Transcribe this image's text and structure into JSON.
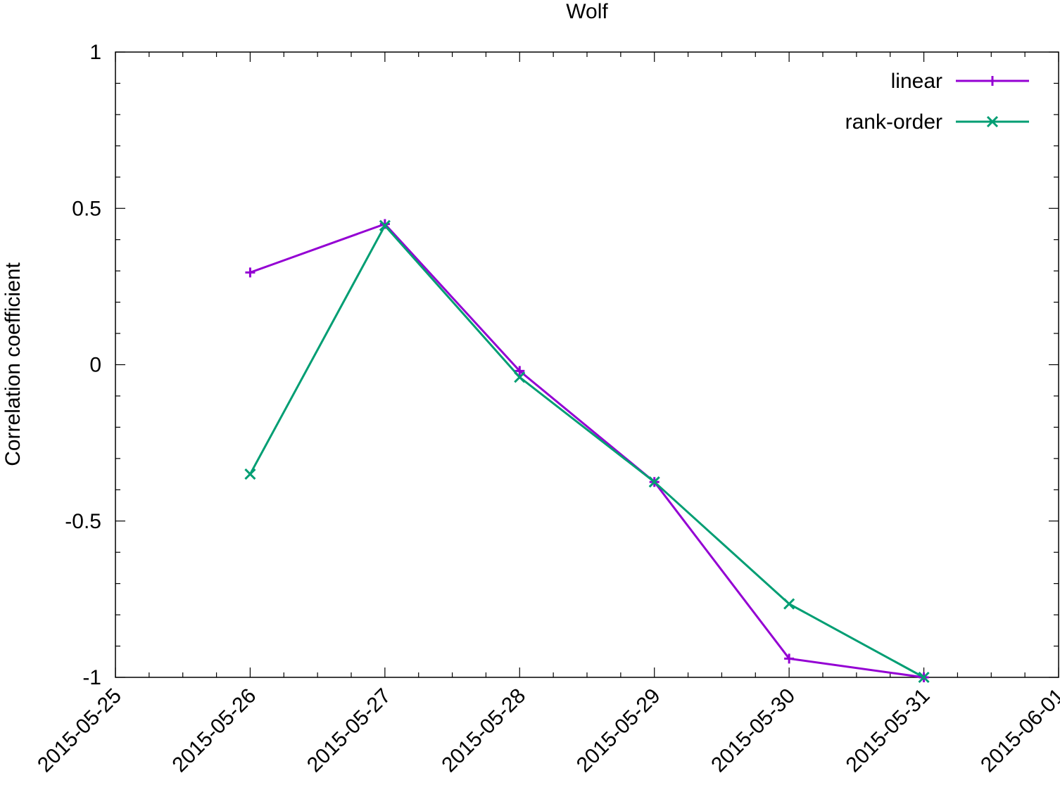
{
  "chart_data": {
    "type": "line",
    "title": "Wolf",
    "xlabel": "",
    "ylabel": "Correlation coefficient",
    "x_type": "date",
    "xlim": [
      "2015-05-25",
      "2015-06-01"
    ],
    "ylim": [
      -1,
      1
    ],
    "x_ticks": [
      "2015-05-25",
      "2015-05-26",
      "2015-05-27",
      "2015-05-28",
      "2015-05-29",
      "2015-05-30",
      "2015-05-31",
      "2015-06-01"
    ],
    "y_ticks": [
      {
        "value": 1,
        "label": "1"
      },
      {
        "value": 0.5,
        "label": "0.5"
      },
      {
        "value": 0,
        "label": "0"
      },
      {
        "value": -0.5,
        "label": "-0.5"
      },
      {
        "value": -1,
        "label": "-1"
      }
    ],
    "grid": false,
    "legend_position": "top-right",
    "x": [
      "2015-05-26",
      "2015-05-27",
      "2015-05-28",
      "2015-05-29",
      "2015-05-30",
      "2015-05-31"
    ],
    "series": [
      {
        "name": "linear",
        "color": "#9400d3",
        "marker": "plus",
        "values": [
          0.295,
          0.45,
          -0.02,
          -0.375,
          -0.94,
          -1.0
        ]
      },
      {
        "name": "rank-order",
        "color": "#009e73",
        "marker": "cross",
        "values": [
          -0.35,
          0.445,
          -0.04,
          -0.375,
          -0.765,
          -1.0
        ]
      }
    ]
  }
}
